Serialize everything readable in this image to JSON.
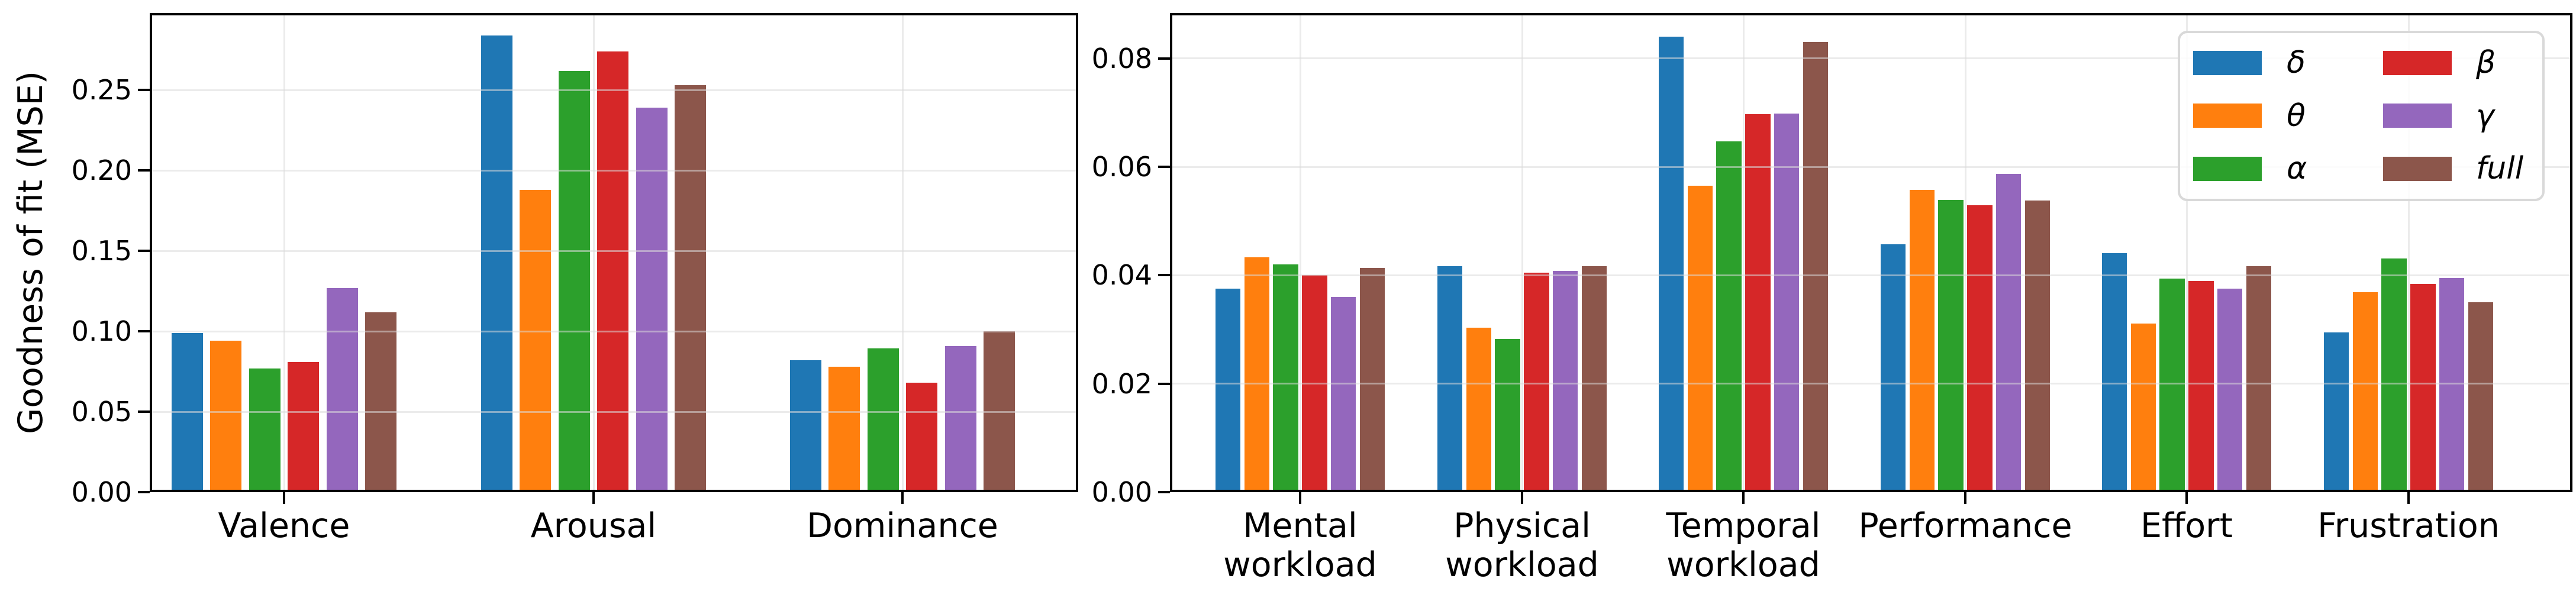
{
  "figure": {
    "background": "#ffffff",
    "axis_color": "#000000",
    "grid_color": "#dadada"
  },
  "chart_data": [
    {
      "type": "bar",
      "title": "",
      "xlabel": "",
      "ylabel": "Goodness of fit (MSE)",
      "grid": true,
      "legend_position": "none",
      "ylim": [
        0,
        0.298
      ],
      "yticks": [
        0,
        0.05,
        0.1,
        0.15,
        0.2,
        0.25
      ],
      "ytick_labels": [
        "0.00",
        "0.05",
        "0.10",
        "0.15",
        "0.20",
        "0.25"
      ],
      "categories": [
        "Valence",
        "Arousal",
        "Dominance"
      ],
      "series": [
        {
          "name": "δ",
          "color": "#1f77b4",
          "values": [
            0.099,
            0.284,
            0.082
          ]
        },
        {
          "name": "θ",
          "color": "#ff7f0e",
          "values": [
            0.094,
            0.188,
            0.078
          ]
        },
        {
          "name": "α",
          "color": "#2ca02c",
          "values": [
            0.077,
            0.262,
            0.0895
          ]
        },
        {
          "name": "β",
          "color": "#d62728",
          "values": [
            0.081,
            0.274,
            0.068
          ]
        },
        {
          "name": "γ",
          "color": "#9467bd",
          "values": [
            0.127,
            0.239,
            0.091
          ]
        },
        {
          "name": "full",
          "color": "#8c564b",
          "values": [
            0.112,
            0.253,
            0.1
          ]
        }
      ]
    },
    {
      "type": "bar",
      "title": "",
      "xlabel": "",
      "ylabel": "",
      "grid": true,
      "legend_position": "upper right",
      "legend_columns": 2,
      "ylim": [
        0,
        0.0884
      ],
      "yticks": [
        0,
        0.02,
        0.04,
        0.06,
        0.08
      ],
      "ytick_labels": [
        "0.00",
        "0.02",
        "0.04",
        "0.06",
        "0.08"
      ],
      "categories": [
        "Mental\nworkload",
        "Physical\nworkload",
        "Temporal\nworkload",
        "Performance",
        "Effort",
        "Frustration"
      ],
      "series": [
        {
          "name": "δ",
          "color": "#1f77b4",
          "values": [
            0.0375,
            0.0417,
            0.084,
            0.0457,
            0.0441,
            0.0295
          ]
        },
        {
          "name": "θ",
          "color": "#ff7f0e",
          "values": [
            0.0433,
            0.0303,
            0.0565,
            0.0558,
            0.0311,
            0.0369
          ]
        },
        {
          "name": "α",
          "color": "#2ca02c",
          "values": [
            0.042,
            0.0283,
            0.0647,
            0.0539,
            0.0394,
            0.0431
          ]
        },
        {
          "name": "β",
          "color": "#d62728",
          "values": [
            0.04,
            0.0405,
            0.0697,
            0.0529,
            0.039,
            0.0384
          ]
        },
        {
          "name": "γ",
          "color": "#9467bd",
          "values": [
            0.036,
            0.0408,
            0.0699,
            0.0587,
            0.0375,
            0.0395
          ]
        },
        {
          "name": "full",
          "color": "#8c564b",
          "values": [
            0.0414,
            0.0417,
            0.083,
            0.0538,
            0.0417,
            0.035
          ]
        }
      ]
    }
  ],
  "legend": {
    "items": [
      {
        "label": "δ",
        "color": "#1f77b4"
      },
      {
        "label": "θ",
        "color": "#ff7f0e"
      },
      {
        "label": "α",
        "color": "#2ca02c"
      },
      {
        "label": "β",
        "color": "#d62728"
      },
      {
        "label": "γ",
        "color": "#9467bd"
      },
      {
        "label": "full",
        "color": "#8c564b"
      }
    ]
  }
}
